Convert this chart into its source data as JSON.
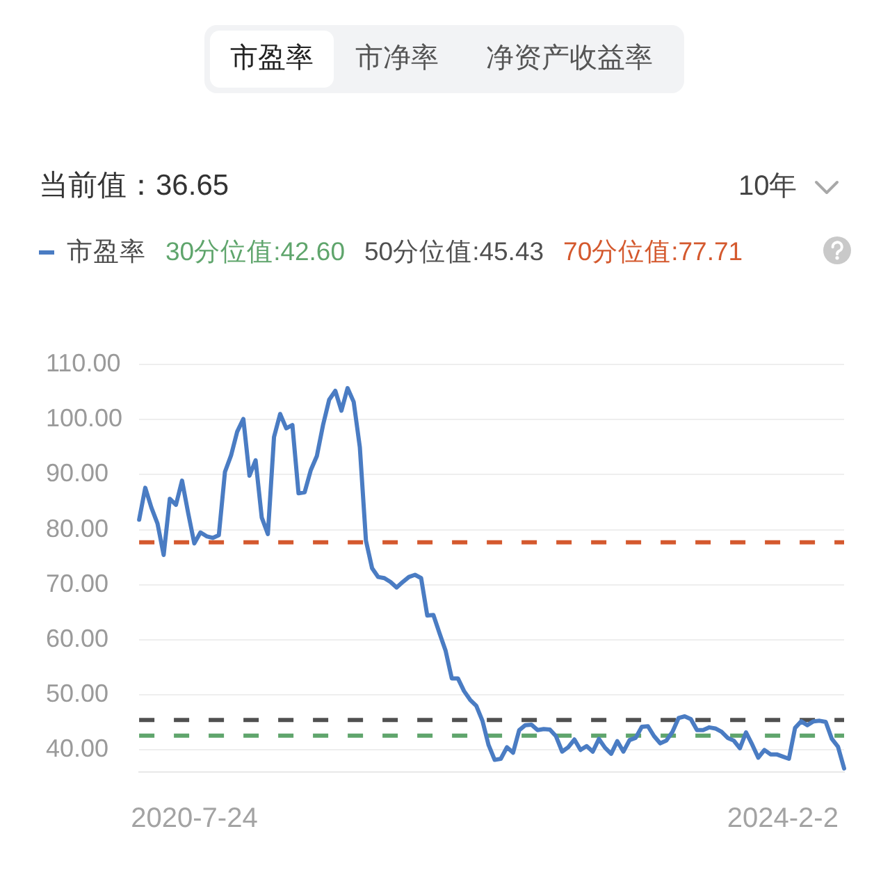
{
  "chart_data": {
    "type": "line",
    "annotations": [
      "市盈率",
      "市净率",
      "净资产收益率",
      "当前值：36.65",
      "10年"
    ],
    "categories": [
      null,
      null,
      null,
      null,
      null,
      null,
      null,
      null,
      null,
      "2020-7-24",
      null,
      null,
      null,
      null,
      null,
      null,
      null,
      null,
      null,
      null,
      null,
      null,
      null,
      null,
      null,
      null,
      null,
      null,
      null,
      null,
      null,
      null,
      null,
      null,
      null,
      null,
      null,
      null,
      null,
      null,
      null,
      null,
      null,
      null,
      null,
      null,
      null,
      null,
      null,
      null,
      null,
      null,
      null,
      null,
      null,
      null,
      null,
      null,
      null,
      null,
      null,
      null,
      null,
      null,
      null,
      null,
      null,
      null,
      null,
      null,
      null,
      null,
      null,
      null,
      null,
      null,
      null,
      null,
      null,
      null,
      null,
      null,
      null,
      null,
      null,
      null,
      null,
      null,
      null,
      null,
      null,
      null,
      null,
      null,
      null,
      null,
      null,
      null,
      null,
      null,
      null,
      null,
      null,
      null,
      null,
      "2024-2-2",
      null,
      null,
      null,
      null,
      null,
      null,
      null,
      null,
      null,
      null
    ],
    "series": [
      {
        "name": "市盈率",
        "color": "#4a7cc3",
        "values": [
          81.8,
          87.6,
          84.0,
          81.1,
          75.4,
          85.6,
          84.5,
          88.9,
          83.0,
          77.5,
          79.5,
          78.8,
          78.5,
          79.0,
          90.5,
          93.5,
          97.8,
          100.1,
          89.8,
          92.6,
          82.2,
          79.2,
          96.8,
          101.0,
          98.4,
          99.0,
          86.6,
          86.8,
          90.8,
          93.4,
          99.0,
          103.6,
          105.2,
          101.6,
          105.7,
          103.2,
          95.0,
          78.0,
          73.0,
          71.4,
          71.2,
          70.5,
          69.5,
          70.5,
          71.4,
          71.8,
          71.2,
          64.4,
          64.5,
          61.2,
          58.0,
          53.0,
          53.0,
          50.7,
          49.1,
          48.0,
          45.3,
          40.9,
          38.2,
          38.4,
          40.5,
          39.5,
          43.6,
          44.5,
          44.6,
          43.6,
          43.8,
          43.7,
          42.5,
          39.7,
          40.5,
          41.9,
          40.0,
          40.7,
          39.7,
          42.0,
          40.4,
          39.3,
          41.6,
          39.7,
          41.8,
          42.2,
          44.2,
          44.3,
          42.5,
          41.2,
          41.7,
          43.3,
          45.8,
          46.1,
          45.6,
          43.6,
          43.6,
          44.1,
          43.9,
          43.3,
          42.2,
          41.7,
          40.3,
          43.2,
          41.0,
          38.6,
          40.0,
          39.2,
          39.2,
          38.8,
          38.4,
          44.0,
          45.2,
          44.5,
          45.2,
          45.3,
          45.1,
          42.0,
          40.6,
          36.65
        ]
      }
    ],
    "ylim": [
      36,
      110
    ],
    "yticks": [
      {
        "value": 40,
        "label": "40.00"
      },
      {
        "value": 50,
        "label": "50.00"
      },
      {
        "value": 60,
        "label": "60.00"
      },
      {
        "value": 70,
        "label": "70.00"
      },
      {
        "value": 80,
        "label": "80.00"
      },
      {
        "value": 90,
        "label": "90.00"
      },
      {
        "value": 100,
        "label": "100.00"
      },
      {
        "value": 110,
        "label": "110.00"
      }
    ],
    "grid": "y",
    "legend": "top left",
    "marker": "none",
    "line_style": "solid",
    "ref_lines": [
      {
        "axis": "y",
        "value": 42.6,
        "label": "30分位值:42.60",
        "color": "#5fa56c",
        "line_style": "dashed"
      },
      {
        "axis": "y",
        "value": 45.43,
        "label": "50分位值:45.43",
        "color": "#505050",
        "line_style": "dashed"
      },
      {
        "axis": "y",
        "value": 77.71,
        "label": "70分位值:77.71",
        "color": "#d4592e",
        "line_style": "dashed"
      }
    ]
  }
}
